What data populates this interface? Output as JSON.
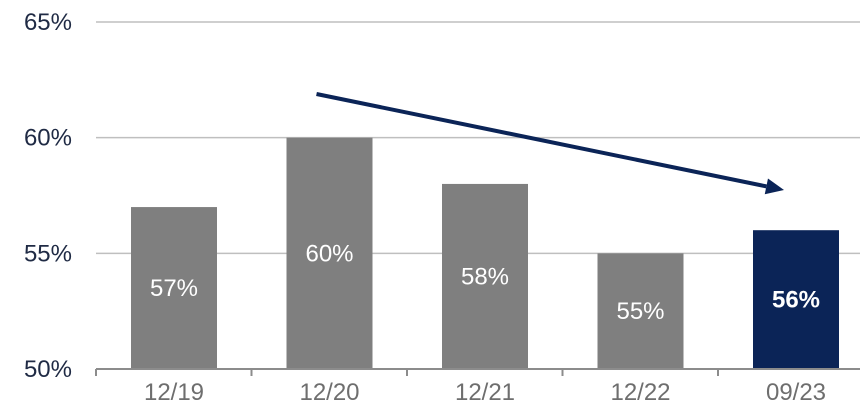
{
  "chart_data": {
    "type": "bar",
    "categories": [
      "12/19",
      "12/20",
      "12/21",
      "12/22",
      "09/23"
    ],
    "values": [
      57,
      60,
      58,
      55,
      56
    ],
    "data_labels": [
      "57%",
      "60%",
      "58%",
      "55%",
      "56%"
    ],
    "ylim": [
      50,
      65
    ],
    "yticks": [
      50,
      55,
      60,
      65
    ],
    "ytick_labels": [
      "50%",
      "55%",
      "60%",
      "65%"
    ],
    "highlight_index": 4,
    "grid": true,
    "trend_arrow": {
      "from_category": "12/20",
      "to_category": "09/23"
    }
  },
  "colors": {
    "bar": "#7f7f7f",
    "highlight_bar": "#0b2457",
    "grid": "#bfbfbf",
    "axis": "#8c8c8c",
    "arrow": "#0b2457",
    "ytick_text": "#1f2a44",
    "xtick_text": "#6e6e6e",
    "bar_label": "#ffffff"
  }
}
